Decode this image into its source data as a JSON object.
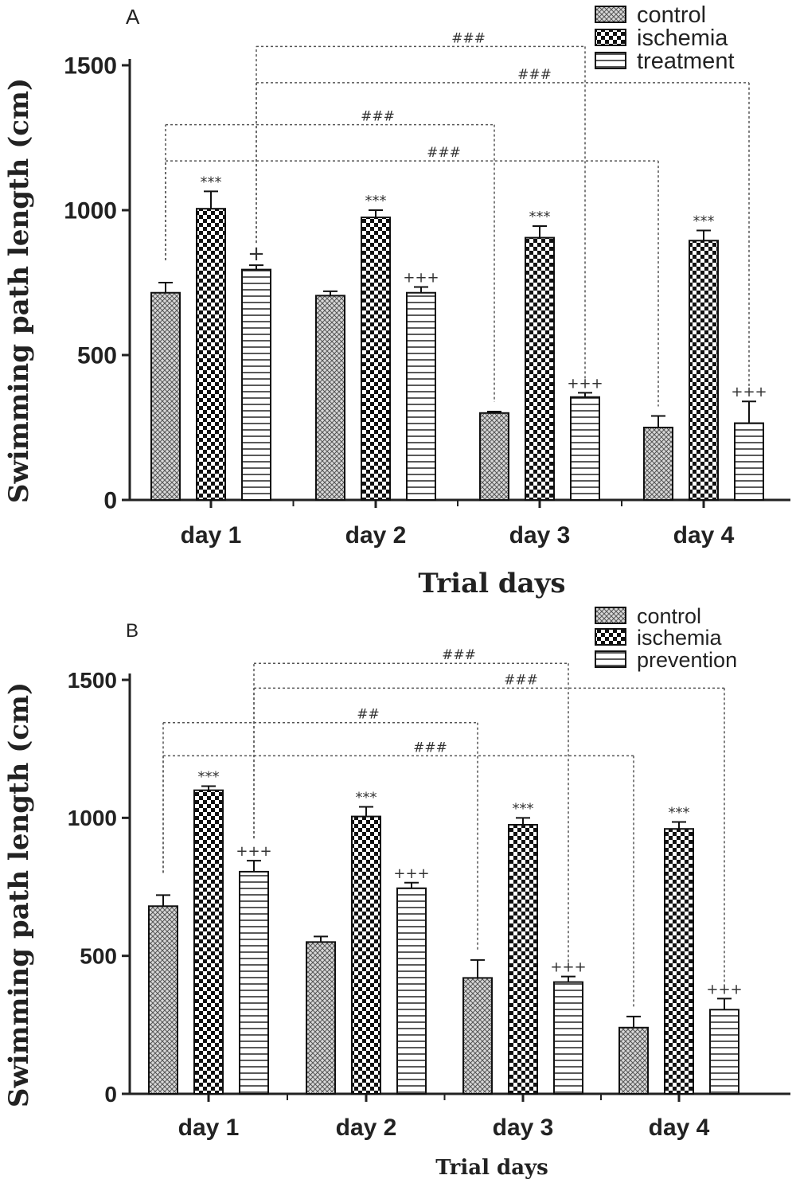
{
  "chart_data": [
    {
      "type": "bar",
      "panel_label": "A",
      "xlabel": "Trial days",
      "ylabel": "Swimming path length (cm)",
      "ylim": [
        0,
        1500
      ],
      "yticks": [
        0,
        500,
        1000,
        1500
      ],
      "categories": [
        "day 1",
        "day 2",
        "day 3",
        "day 4"
      ],
      "legend_position": "top-right",
      "series": [
        {
          "name": "control",
          "pattern": "crosshatch",
          "values": [
            715,
            705,
            300,
            250
          ],
          "errors": [
            35,
            15,
            5,
            40
          ],
          "annotations": [
            "",
            "",
            "",
            ""
          ]
        },
        {
          "name": "ischemia",
          "pattern": "checker",
          "values": [
            1005,
            975,
            905,
            895
          ],
          "errors": [
            60,
            25,
            40,
            35
          ],
          "annotations": [
            "***",
            "***",
            "***",
            "***"
          ]
        },
        {
          "name": "treatment",
          "pattern": "hlines",
          "values": [
            795,
            715,
            355,
            265
          ],
          "errors": [
            15,
            20,
            15,
            75
          ],
          "annotations": [
            "+",
            "+++",
            "+++",
            "+++"
          ]
        }
      ],
      "brackets": [
        {
          "label": "###",
          "from": [
            0,
            2
          ],
          "to": [
            2,
            2
          ],
          "level": 1565
        },
        {
          "label": "###",
          "from": [
            0,
            2
          ],
          "to": [
            3,
            2
          ],
          "level": 1440
        },
        {
          "label": "###",
          "from": [
            0,
            0
          ],
          "to": [
            2,
            0
          ],
          "level": 1295
        },
        {
          "label": "###",
          "from": [
            0,
            0
          ],
          "to": [
            3,
            0
          ],
          "level": 1170
        }
      ]
    },
    {
      "type": "bar",
      "panel_label": "B",
      "xlabel": "Trial days",
      "ylabel": "Swimming path length (cm)",
      "ylim": [
        0,
        1500
      ],
      "yticks": [
        0,
        500,
        1000,
        1500
      ],
      "categories": [
        "day 1",
        "day 2",
        "day 3",
        "day 4"
      ],
      "legend_position": "top-right",
      "series": [
        {
          "name": "control",
          "pattern": "crosshatch",
          "values": [
            680,
            550,
            420,
            240
          ],
          "errors": [
            40,
            20,
            65,
            40
          ],
          "annotations": [
            "",
            "",
            "",
            ""
          ]
        },
        {
          "name": "ischemia",
          "pattern": "checker",
          "values": [
            1100,
            1005,
            975,
            960
          ],
          "errors": [
            15,
            35,
            25,
            25
          ],
          "annotations": [
            "***",
            "***",
            "***",
            "***"
          ]
        },
        {
          "name": "prevention",
          "pattern": "hlines",
          "values": [
            805,
            745,
            405,
            305
          ],
          "errors": [
            40,
            20,
            20,
            40
          ],
          "annotations": [
            "+++",
            "+++",
            "+++",
            "+++"
          ]
        }
      ],
      "brackets": [
        {
          "label": "###",
          "from": [
            0,
            2
          ],
          "to": [
            2,
            2
          ],
          "level": 1560
        },
        {
          "label": "###",
          "from": [
            0,
            2
          ],
          "to": [
            3,
            2
          ],
          "level": 1470
        },
        {
          "label": "##",
          "from": [
            0,
            0
          ],
          "to": [
            2,
            0
          ],
          "level": 1345
        },
        {
          "label": "###",
          "from": [
            0,
            0
          ],
          "to": [
            3,
            0
          ],
          "level": 1225
        }
      ]
    }
  ]
}
